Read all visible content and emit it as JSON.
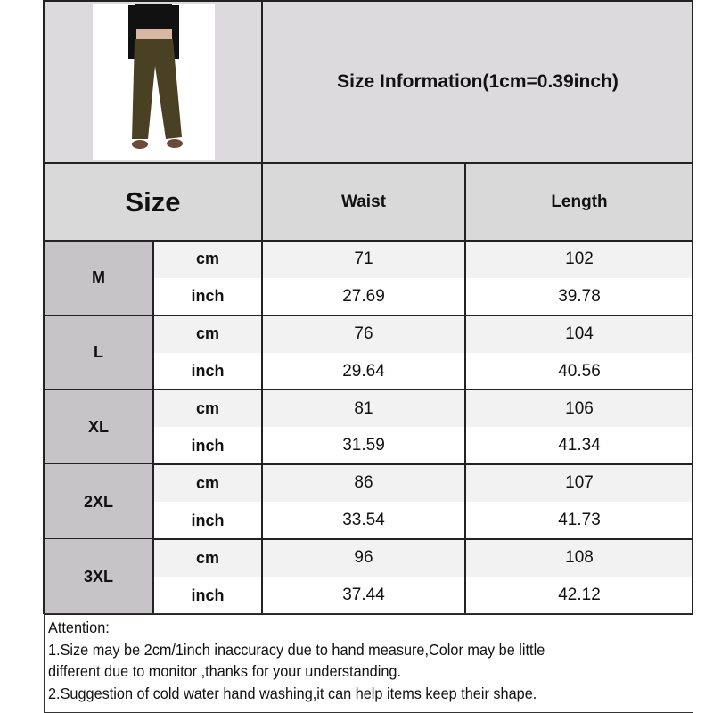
{
  "title": "Size Information(1cm=0.39inch)",
  "header": {
    "size": "Size",
    "waist": "Waist",
    "length": "Length"
  },
  "rows": [
    {
      "size": "M",
      "cm": {
        "unit": "cm",
        "waist": "71",
        "length": "102"
      },
      "inch": {
        "unit": "inch",
        "waist": "27.69",
        "length": "39.78"
      }
    },
    {
      "size": "L",
      "cm": {
        "unit": "cm",
        "waist": "76",
        "length": "104"
      },
      "inch": {
        "unit": "inch",
        "waist": "29.64",
        "length": "40.56"
      }
    },
    {
      "size": "XL",
      "cm": {
        "unit": "cm",
        "waist": "81",
        "length": "106"
      },
      "inch": {
        "unit": "inch",
        "waist": "31.59",
        "length": "41.34"
      }
    },
    {
      "size": "2XL",
      "cm": {
        "unit": "cm",
        "waist": "86",
        "length": "107"
      },
      "inch": {
        "unit": "inch",
        "waist": "33.54",
        "length": "41.73"
      }
    },
    {
      "size": "3XL",
      "cm": {
        "unit": "cm",
        "waist": "96",
        "length": "108"
      },
      "inch": {
        "unit": "inch",
        "waist": "37.44",
        "length": "42.12"
      }
    }
  ],
  "attention": {
    "heading": "Attention:",
    "line1": "1.Size may be 2cm/1inch inaccuracy due to hand measure,Color may be little",
    "line2": "different due to monitor ,thanks for your understanding.",
    "line3": "2.Suggestion of cold water hand washing,it can help items keep their shape."
  },
  "colors": {
    "top_bg": "#dcdadc",
    "size_bg": "#c6c4c6",
    "cm_bg": "#f2f2f2",
    "inch_bg": "#ffffff",
    "pants": "#4a4024"
  }
}
